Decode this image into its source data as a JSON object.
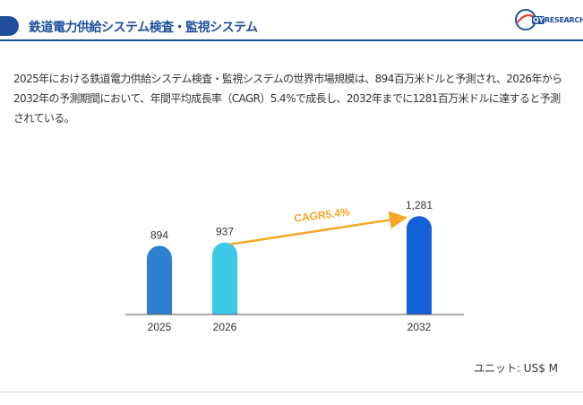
{
  "header": {
    "title": "鉄道電力供給システム検査・監視システム",
    "logo_text_brand": "QY",
    "logo_text_rest": "RESEARCH"
  },
  "description": "2025年における鉄道電力供給システム検査・監視システムの世界市場規模は、894百万米ドルと予測され、2026年から2032年の予測期間において、年間平均成長率（CAGR）5.4%で成長し、2032年までに1281百万米ドルに達すると予測されている。",
  "chart_data": {
    "type": "bar",
    "categories": [
      "2025",
      "2026",
      "2032"
    ],
    "values": [
      894,
      937,
      1281
    ],
    "value_labels": [
      "894",
      "937",
      "1,281"
    ],
    "bar_colors": [
      "#2f7fd0",
      "#3cc8e6",
      "#1460d8"
    ],
    "cagr_label": "CAGR5.4%",
    "arrow_color": "#f5a623",
    "title": "",
    "xlabel": "",
    "ylabel": "",
    "ylim": [
      0,
      1400
    ],
    "grid": false
  },
  "unit_label": "ユニット: US$ M",
  "colors": {
    "brand": "#1f4f9c"
  }
}
